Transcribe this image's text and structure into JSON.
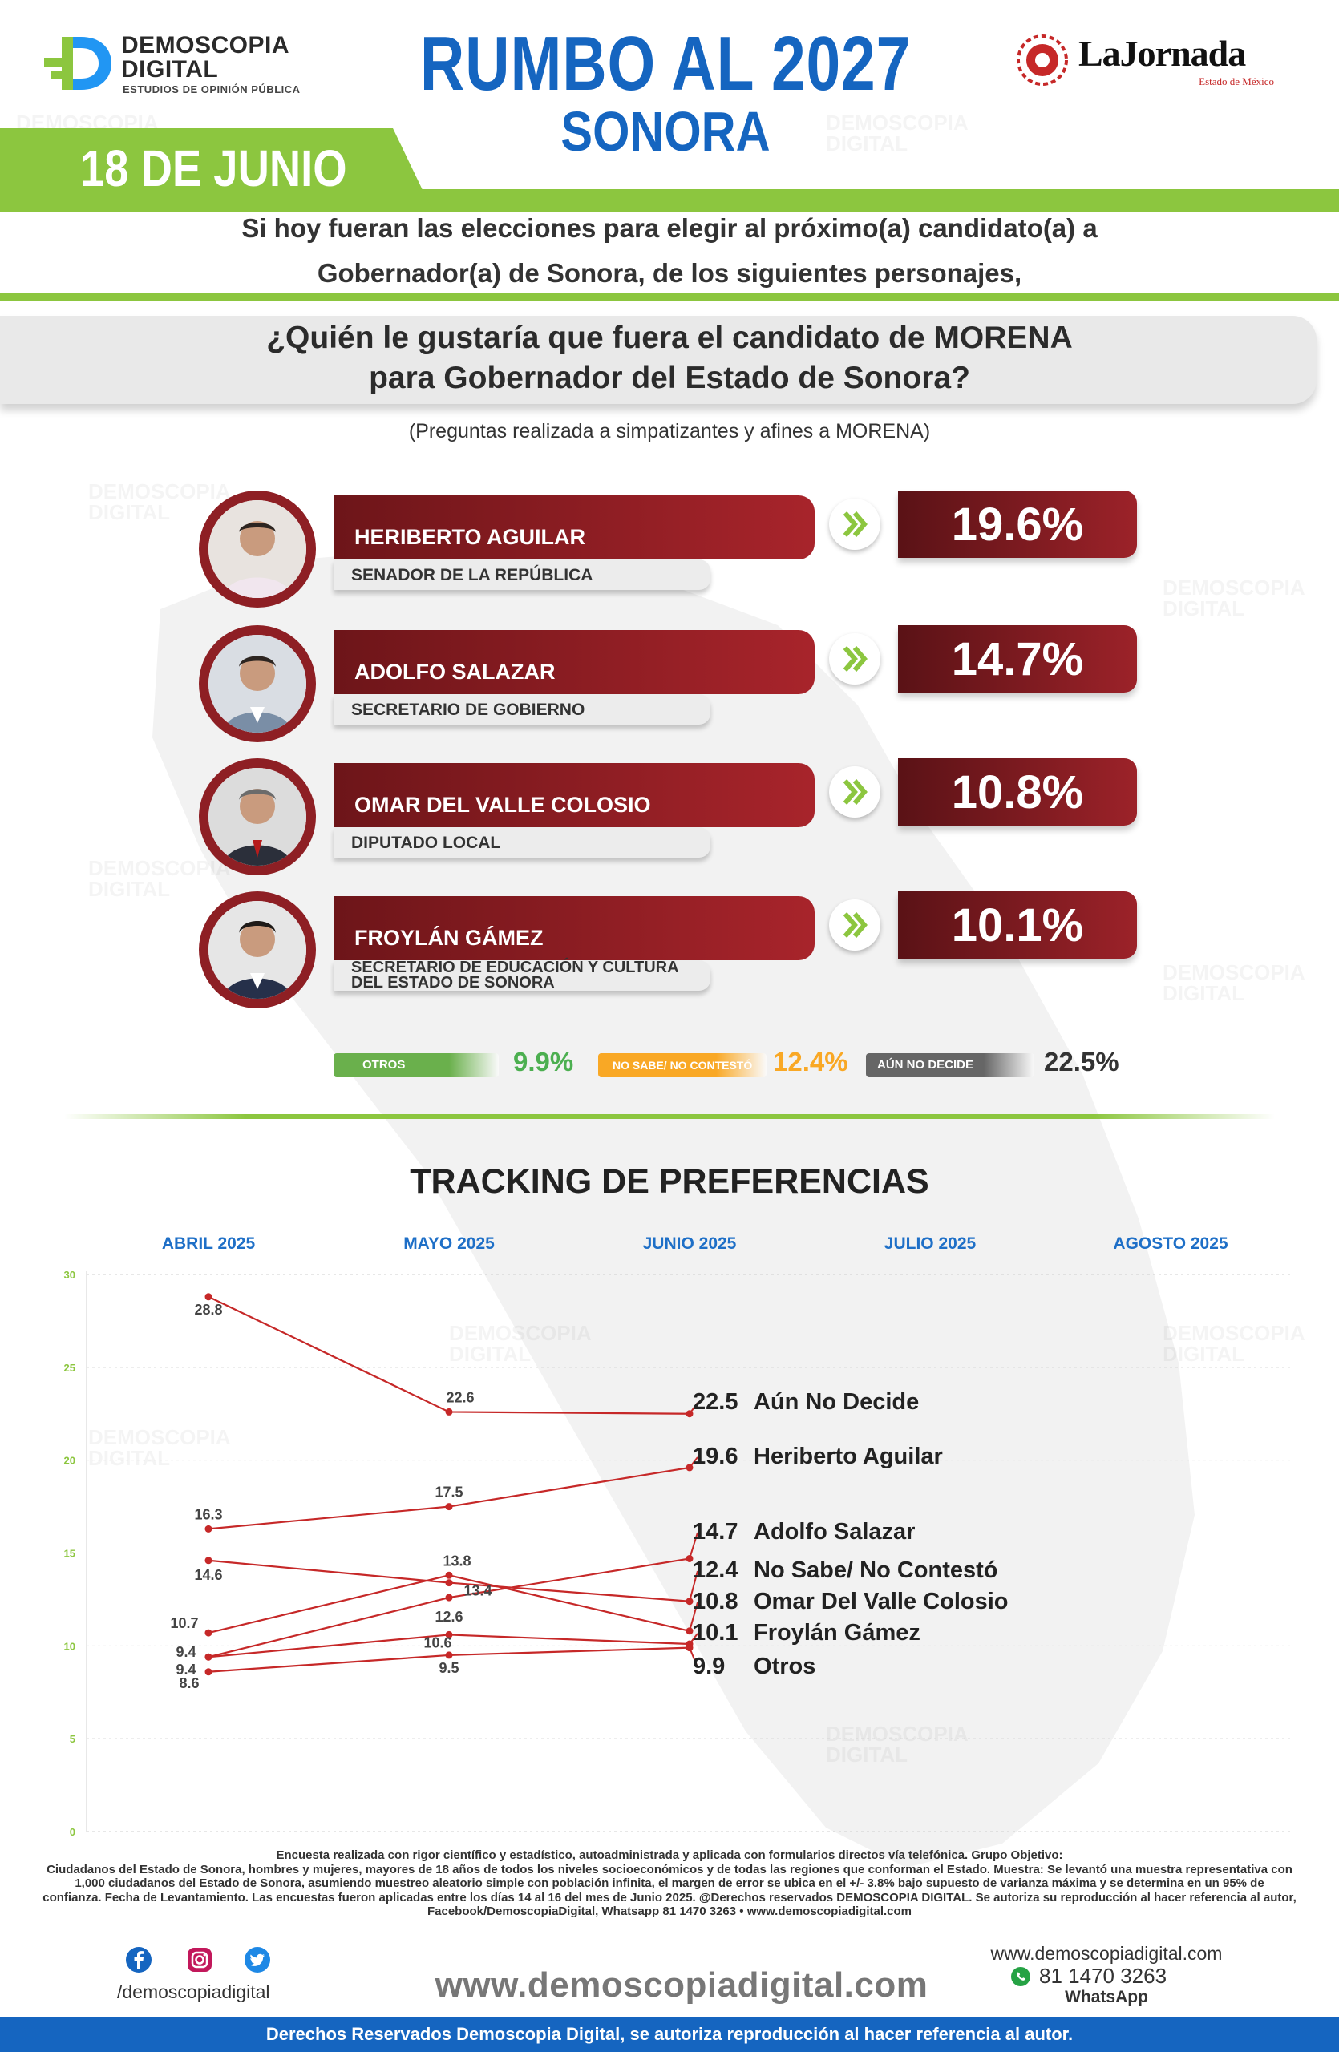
{
  "header": {
    "logo_line1": "DEMOSCOPIA",
    "logo_line2": "DIGITAL",
    "logo_line3": "ESTUDIOS DE OPINIÓN PÚBLICA",
    "title": "RUMBO AL 2027",
    "state": "SONORA",
    "date": "18 DE JUNIO",
    "partner_name": "LaJornada",
    "partner_sub": "Estado de México"
  },
  "intro": {
    "line1": "Si hoy fueran las elecciones para elegir al próximo(a) candidato(a) a",
    "line2": "Gobernador(a) de Sonora, de los siguientes personajes,"
  },
  "question": {
    "line1": "¿Quién le gustaría que fuera el candidato de MORENA",
    "line2": "para Gobernador del Estado de Sonora?",
    "note": "(Preguntas realizada a simpatizantes y afines a MORENA)"
  },
  "candidates": [
    {
      "name": "HERIBERTO AGUILAR",
      "role": "SENADOR DE LA REPÚBLICA",
      "role2": "",
      "pct": "19.6%"
    },
    {
      "name": "ADOLFO SALAZAR",
      "role": "SECRETARIO DE GOBIERNO",
      "role2": "",
      "pct": "14.7%"
    },
    {
      "name": "OMAR DEL VALLE COLOSIO",
      "role": "DIPUTADO LOCAL",
      "role2": "",
      "pct": "10.8%"
    },
    {
      "name": "FROYLÁN GÁMEZ",
      "role": "SECRETARIO DE EDUCACIÓN Y CULTURA",
      "role2": "DEL ESTADO DE SONORA",
      "pct": "10.1%"
    }
  ],
  "others": [
    {
      "label": "OTROS",
      "value": "9.9%",
      "color": "#6ab04c",
      "text_color": "#4caf50"
    },
    {
      "label": "NO SABE/ NO CONTESTÓ",
      "value": "12.4%",
      "color": "#f9a825",
      "text_color": "#f9a825"
    },
    {
      "label": "AÚN NO DECIDE",
      "value": "22.5%",
      "color": "#666666",
      "text_color": "#333333"
    }
  ],
  "tracking_title": "TRACKING DE PREFERENCIAS",
  "chart_data": {
    "type": "line",
    "months": [
      "ABRIL 2025",
      "MAYO 2025",
      "JUNIO 2025",
      "JULIO 2025",
      "AGOSTO 2025"
    ],
    "y_ticks": [
      "0",
      "5",
      "10",
      "15",
      "20",
      "25",
      "30"
    ],
    "ylim": [
      0,
      30
    ],
    "grid": true,
    "line_color": "#c62828",
    "series": [
      {
        "name": "Aún No Decide",
        "values": [
          28.8,
          22.6,
          22.5
        ],
        "labels": [
          "28.8",
          "22.6",
          "22.5"
        ]
      },
      {
        "name": "Heriberto Aguilar",
        "values": [
          16.3,
          17.5,
          19.6
        ],
        "labels": [
          "16.3",
          "17.5",
          "19.6"
        ]
      },
      {
        "name": "Adolfo Salazar",
        "values": [
          9.4,
          12.6,
          14.7
        ],
        "labels": [
          "9.4",
          "12.6",
          "14.7"
        ]
      },
      {
        "name": "No Sabe/ No Contestó",
        "values": [
          14.6,
          13.4,
          12.4
        ],
        "labels": [
          "14.6",
          "13.4",
          "12.4"
        ]
      },
      {
        "name": "Omar Del Valle Colosio",
        "values": [
          10.7,
          13.8,
          10.8
        ],
        "labels": [
          "10.7",
          "13.8",
          "10.8"
        ]
      },
      {
        "name": "Froylán Gámez",
        "values": [
          9.4,
          10.6,
          10.1
        ],
        "labels": [
          "9.4",
          "10.6",
          "10.1"
        ]
      },
      {
        "name": "Otros",
        "values": [
          8.6,
          9.5,
          9.9
        ],
        "labels": [
          "8.6",
          "9.5",
          "9.9"
        ]
      }
    ]
  },
  "footer": {
    "methodology_1": "Encuesta realizada con rigor científico y estadístico, autoadministrada y aplicada con formularios directos vía telefónica. Grupo Objetivo:",
    "methodology_2": "Ciudadanos del Estado de Sonora, hombres y mujeres, mayores de 18 años de todos los niveles socioeconómicos y de todas las regiones que conforman el Estado. Muestra: Se levantó una muestra representativa con",
    "methodology_3": "1,000 ciudadanos del Estado de Sonora, asumiendo muestreo aleatorio simple con población infinita, el margen de error se ubica en el +/- 3.8% bajo supuesto de varianza máxima y se determina en un 95% de",
    "methodology_4": "confianza. Fecha de Levantamiento. Las encuestas fueron aplicadas entre los días 14 al 16 del mes de Junio 2025. @Derechos reservados DEMOSCOPIA DIGITAL. Se autoriza su reproducción al hacer referencia al autor,",
    "methodology_5": "Facebook/DemoscopiaDigital, Whatsapp 81 1470 3263 • www.demoscopiadigital.com",
    "social_handle": "/demoscopiadigital",
    "big_url": "www.demoscopiadigital.com",
    "contact_url": "www.demoscopiadigital.com",
    "contact_phone": "81 1470 3263",
    "contact_wa": "WhatsApp",
    "rights": "Derechos Reservados Demoscopia Digital, se autoriza reproducción al hacer referencia al autor."
  }
}
